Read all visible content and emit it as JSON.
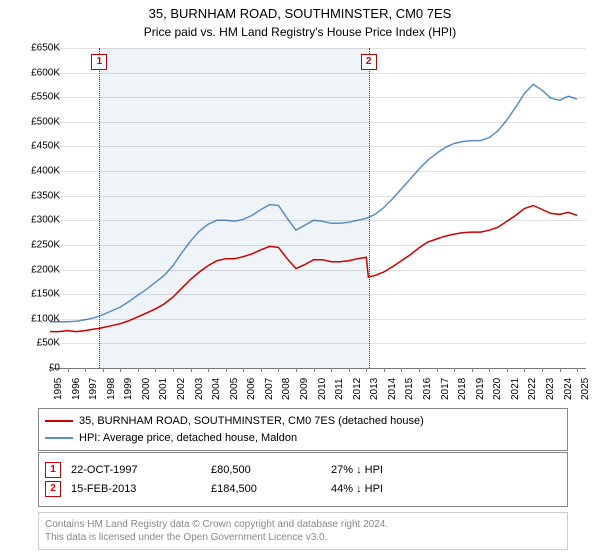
{
  "title": "35, BURNHAM ROAD, SOUTHMINSTER, CM0 7ES",
  "subtitle": "Price paid vs. HM Land Registry's House Price Index (HPI)",
  "chart": {
    "type": "line",
    "background_color": "#ffffff",
    "grid_color": "rgba(0,0,0,0.12)",
    "axis_color": "#888888",
    "label_fontsize": 10,
    "title_fontsize": 13,
    "x_start": 1995,
    "x_end": 2025.5,
    "x_ticks": [
      1995,
      1996,
      1997,
      1998,
      1999,
      2000,
      2001,
      2002,
      2003,
      2004,
      2005,
      2006,
      2007,
      2008,
      2009,
      2010,
      2011,
      2012,
      2013,
      2014,
      2015,
      2016,
      2017,
      2018,
      2019,
      2020,
      2021,
      2022,
      2023,
      2024,
      2025
    ],
    "y_min": 0,
    "y_max": 650000,
    "y_tick_step": 50000,
    "y_tick_prefix": "£",
    "y_tick_suffix": "K",
    "shaded_start": 1997.81,
    "shaded_end": 2013.13,
    "shaded_color": "rgba(100,150,200,0.10)",
    "markers": [
      {
        "n": "1",
        "x": 1997.81,
        "color": "#cc0000"
      },
      {
        "n": "2",
        "x": 2013.13,
        "color": "#cc0000"
      }
    ],
    "series": [
      {
        "name": "35, BURNHAM ROAD, SOUTHMINSTER, CM0 7ES (detached house)",
        "color": "#cc0000",
        "line_width": 1.5,
        "points": [
          [
            1995,
            74000
          ],
          [
            1995.5,
            74000
          ],
          [
            1996,
            76000
          ],
          [
            1996.5,
            74000
          ],
          [
            1997,
            76000
          ],
          [
            1997.5,
            79000
          ],
          [
            1997.81,
            80500
          ],
          [
            1998,
            82000
          ],
          [
            1998.5,
            86000
          ],
          [
            1999,
            90000
          ],
          [
            1999.5,
            96000
          ],
          [
            2000,
            104000
          ],
          [
            2000.5,
            112000
          ],
          [
            2001,
            120000
          ],
          [
            2001.5,
            130000
          ],
          [
            2002,
            144000
          ],
          [
            2002.5,
            162000
          ],
          [
            2003,
            180000
          ],
          [
            2003.5,
            195000
          ],
          [
            2004,
            208000
          ],
          [
            2004.5,
            218000
          ],
          [
            2005,
            222000
          ],
          [
            2005.5,
            222000
          ],
          [
            2006,
            226000
          ],
          [
            2006.5,
            232000
          ],
          [
            2007,
            240000
          ],
          [
            2007.5,
            247000
          ],
          [
            2008,
            245000
          ],
          [
            2008.5,
            222000
          ],
          [
            2009,
            202000
          ],
          [
            2009.5,
            210000
          ],
          [
            2010,
            220000
          ],
          [
            2010.5,
            220000
          ],
          [
            2011,
            216000
          ],
          [
            2011.5,
            216000
          ],
          [
            2012,
            218000
          ],
          [
            2012.5,
            222000
          ],
          [
            2013,
            225000
          ],
          [
            2013.12,
            184500
          ],
          [
            2013.5,
            188000
          ],
          [
            2014,
            195000
          ],
          [
            2014.5,
            206000
          ],
          [
            2015,
            218000
          ],
          [
            2015.5,
            230000
          ],
          [
            2016,
            244000
          ],
          [
            2016.5,
            256000
          ],
          [
            2017,
            262000
          ],
          [
            2017.5,
            268000
          ],
          [
            2018,
            272000
          ],
          [
            2018.5,
            275000
          ],
          [
            2019,
            276000
          ],
          [
            2019.5,
            276000
          ],
          [
            2020,
            280000
          ],
          [
            2020.5,
            286000
          ],
          [
            2021,
            298000
          ],
          [
            2021.5,
            310000
          ],
          [
            2022,
            324000
          ],
          [
            2022.5,
            330000
          ],
          [
            2023,
            322000
          ],
          [
            2023.5,
            314000
          ],
          [
            2024,
            312000
          ],
          [
            2024.5,
            316000
          ],
          [
            2025,
            310000
          ]
        ]
      },
      {
        "name": "HPI: Average price, detached house, Maldon",
        "color": "#5b8fc7",
        "line_width": 1.5,
        "points": [
          [
            1995,
            94000
          ],
          [
            1995.5,
            94000
          ],
          [
            1996,
            94000
          ],
          [
            1996.5,
            95000
          ],
          [
            1997,
            98000
          ],
          [
            1997.5,
            102000
          ],
          [
            1998,
            108000
          ],
          [
            1998.5,
            116000
          ],
          [
            1999,
            124000
          ],
          [
            1999.5,
            135000
          ],
          [
            2000,
            148000
          ],
          [
            2000.5,
            160000
          ],
          [
            2001,
            174000
          ],
          [
            2001.5,
            188000
          ],
          [
            2002,
            208000
          ],
          [
            2002.5,
            234000
          ],
          [
            2003,
            258000
          ],
          [
            2003.5,
            278000
          ],
          [
            2004,
            292000
          ],
          [
            2004.5,
            300000
          ],
          [
            2005,
            300000
          ],
          [
            2005.5,
            298000
          ],
          [
            2006,
            302000
          ],
          [
            2006.5,
            310000
          ],
          [
            2007,
            322000
          ],
          [
            2007.5,
            332000
          ],
          [
            2008,
            330000
          ],
          [
            2008.5,
            304000
          ],
          [
            2009,
            280000
          ],
          [
            2009.5,
            290000
          ],
          [
            2010,
            300000
          ],
          [
            2010.5,
            298000
          ],
          [
            2011,
            294000
          ],
          [
            2011.5,
            294000
          ],
          [
            2012,
            296000
          ],
          [
            2012.5,
            300000
          ],
          [
            2013,
            304000
          ],
          [
            2013.5,
            312000
          ],
          [
            2014,
            326000
          ],
          [
            2014.5,
            344000
          ],
          [
            2015,
            364000
          ],
          [
            2015.5,
            384000
          ],
          [
            2016,
            404000
          ],
          [
            2016.5,
            422000
          ],
          [
            2017,
            436000
          ],
          [
            2017.5,
            448000
          ],
          [
            2018,
            456000
          ],
          [
            2018.5,
            460000
          ],
          [
            2019,
            462000
          ],
          [
            2019.5,
            462000
          ],
          [
            2020,
            468000
          ],
          [
            2020.5,
            482000
          ],
          [
            2021,
            504000
          ],
          [
            2021.5,
            530000
          ],
          [
            2022,
            558000
          ],
          [
            2022.5,
            576000
          ],
          [
            2023,
            564000
          ],
          [
            2023.5,
            548000
          ],
          [
            2024,
            544000
          ],
          [
            2024.5,
            552000
          ],
          [
            2025,
            546000
          ]
        ]
      }
    ]
  },
  "legend": {
    "border_color": "#888888",
    "items": [
      {
        "color": "#cc0000",
        "label": "35, BURNHAM ROAD, SOUTHMINSTER, CM0 7ES (detached house)"
      },
      {
        "color": "#5b8fc7",
        "label": "HPI: Average price, detached house, Maldon"
      }
    ]
  },
  "sales": {
    "rows": [
      {
        "n": "1",
        "color": "#cc0000",
        "date": "22-OCT-1997",
        "price": "£80,500",
        "pct": "27% ↓ HPI"
      },
      {
        "n": "2",
        "color": "#cc0000",
        "date": "15-FEB-2013",
        "price": "£184,500",
        "pct": "44% ↓ HPI"
      }
    ]
  },
  "footer": {
    "line1": "Contains HM Land Registry data © Crown copyright and database right 2024.",
    "line2": "This data is licensed under the Open Government Licence v3.0.",
    "text_color": "#888888"
  }
}
